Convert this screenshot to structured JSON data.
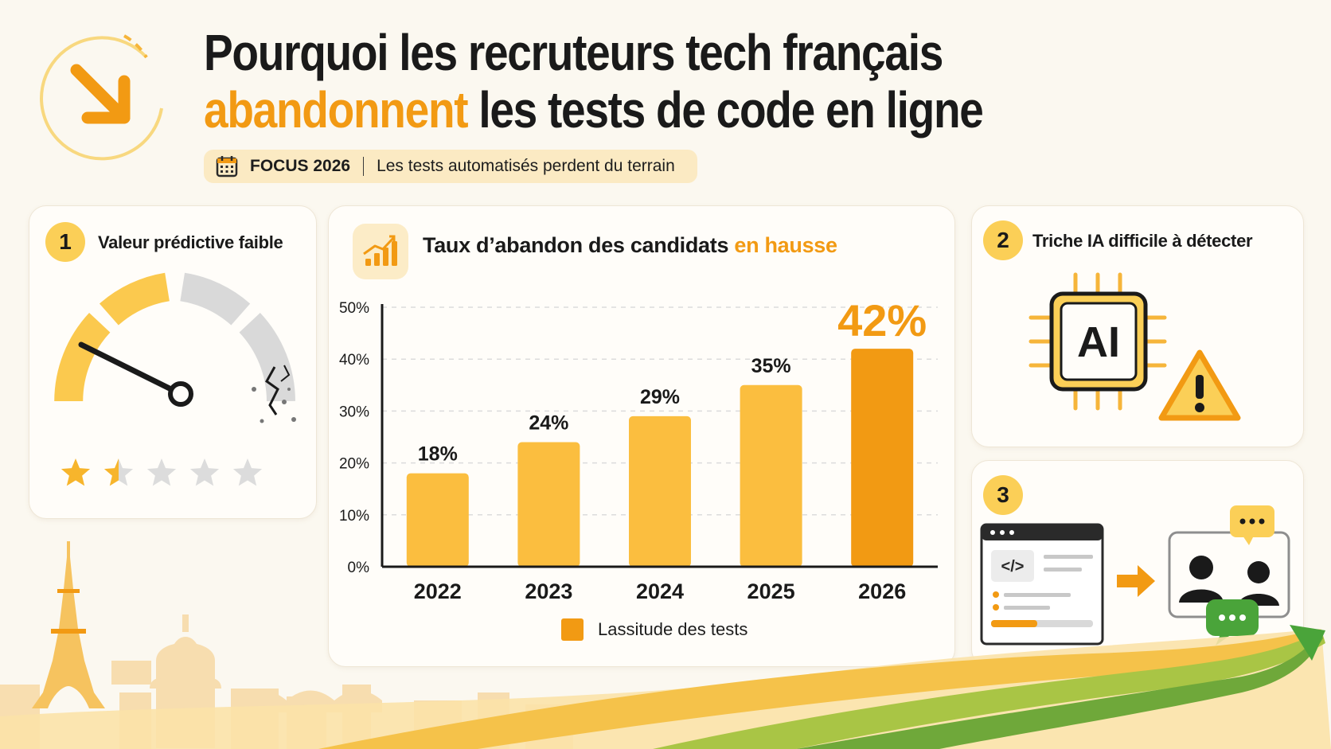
{
  "header": {
    "title_line1": "Pourquoi les recruteurs tech français",
    "title_accent": "abandonnent",
    "title_line2_rest": " les tests de code en ligne",
    "focus_tag": "FOCUS 2026",
    "focus_text": "Les tests automatisés perdent du terrain",
    "icons": [
      "down-right-arrow-icon",
      "calendar-icon"
    ]
  },
  "cards": {
    "predictive": {
      "number": "1",
      "title": "Valeur prédictive faible",
      "rating": 1.5,
      "rating_max": 5
    },
    "ai": {
      "number": "2",
      "title": "Triche IA difficile à détecter",
      "chip_label": "AI",
      "icons": [
        "ai-chip-icon",
        "warning-icon"
      ]
    },
    "interview": {
      "number": "3",
      "icons": [
        "code-window-icon",
        "arrow-right-icon",
        "video-call-icon",
        "chat-bubble-icon"
      ]
    }
  },
  "chart_title_main": "Taux d’abandon des candidats ",
  "chart_title_accent": "en hausse",
  "chart_data": {
    "type": "bar",
    "categories": [
      "2022",
      "2023",
      "2024",
      "2025",
      "2026"
    ],
    "values": [
      18,
      24,
      29,
      35,
      42
    ],
    "value_labels": [
      "18%",
      "24%",
      "29%",
      "35%",
      "42%"
    ],
    "series": [
      {
        "name": "Lassitude des tests",
        "values": [
          18,
          24,
          29,
          35,
          42
        ]
      }
    ],
    "ylim": [
      0,
      50
    ],
    "yticks": [
      0,
      10,
      20,
      30,
      40,
      50
    ],
    "ytick_labels": [
      "0%",
      "10%",
      "20%",
      "30%",
      "40%",
      "50%"
    ],
    "grid": true,
    "legend_position": "bottom",
    "highlight_category": "2026",
    "colors": {
      "bar": "#fbbe3f",
      "highlight": "#f29a13",
      "axis": "#1a1a1a",
      "grid": "#dcdcdc"
    }
  }
}
